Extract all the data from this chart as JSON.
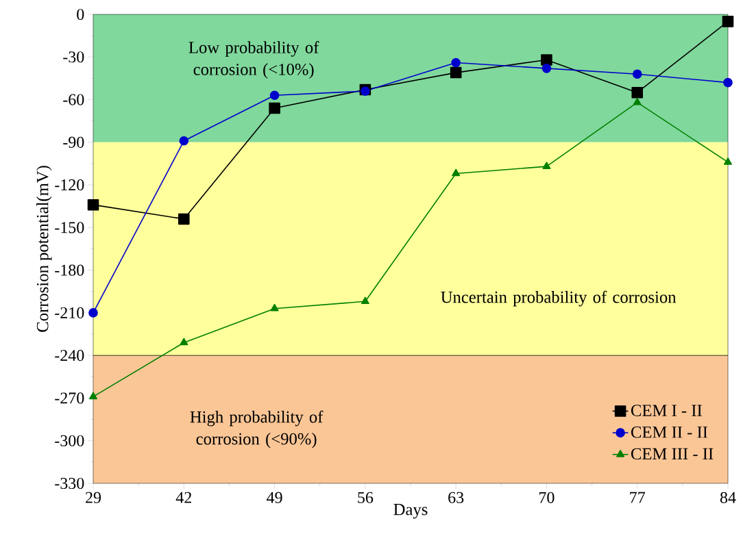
{
  "chart_data": {
    "type": "line",
    "xlabel": "Days",
    "ylabel": "Corrosion potential(mV)",
    "categories": [
      "29",
      "42",
      "49",
      "56",
      "63",
      "70",
      "77",
      "84"
    ],
    "series": [
      {
        "name": "CEM I - II",
        "color": "#000000",
        "marker": "square",
        "values": [
          -134,
          -144,
          -66,
          -53,
          -41,
          -32,
          -55,
          -5
        ]
      },
      {
        "name": "CEM II - II",
        "color": "#0000cc",
        "marker": "circle",
        "values": [
          -210,
          -89,
          -57,
          -54,
          -34,
          -38,
          -42,
          -48
        ]
      },
      {
        "name": "CEM III - II",
        "color": "#008000",
        "marker": "triangle",
        "values": [
          -269,
          -231,
          -207,
          -202,
          -112,
          -107,
          -62,
          -104
        ]
      }
    ],
    "ylim": [
      -330,
      0
    ],
    "yticks": [
      -330,
      -300,
      -270,
      -240,
      -210,
      -180,
      -150,
      -120,
      -90,
      -60,
      -30,
      0
    ],
    "bands": [
      {
        "axis": "y",
        "from": -90,
        "to": 0,
        "color": "#80d89c",
        "label": "Low probability of corrosion (<10%)"
      },
      {
        "axis": "y",
        "from": -240,
        "to": -90,
        "color": "#ffff9c",
        "label": "Uncertain probability of corrosion"
      },
      {
        "axis": "y",
        "from": -330,
        "to": -240,
        "color": "#fbc696",
        "label": "High probability of corrosion (<90%)"
      }
    ],
    "legend": "bottom right",
    "line_style": "solid"
  }
}
